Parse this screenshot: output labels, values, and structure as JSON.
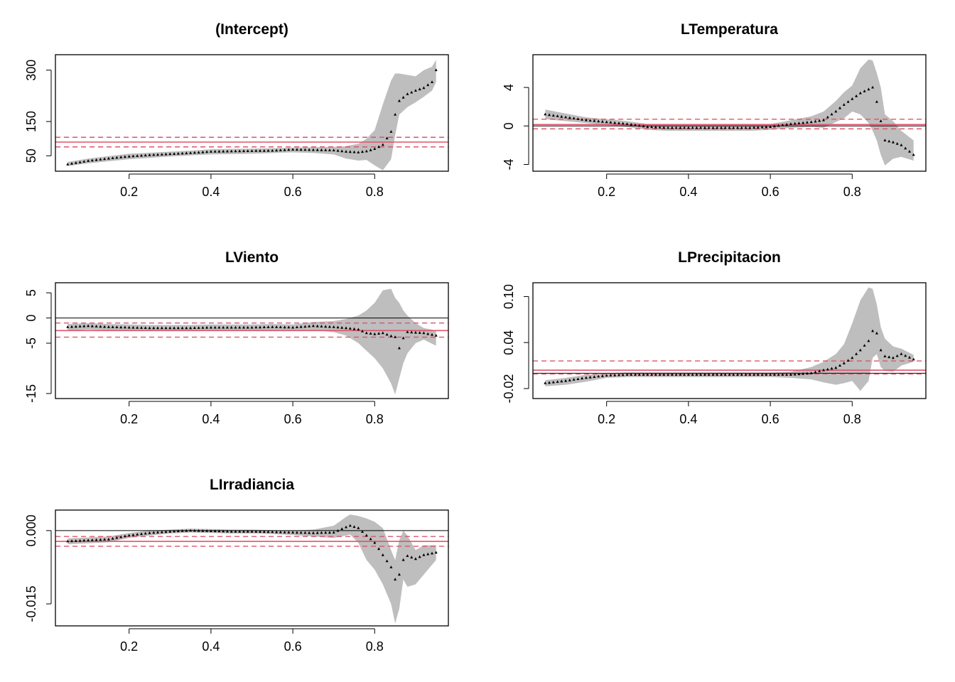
{
  "colors": {
    "band": "#bebebe",
    "points": "#000000",
    "ols": "#df536b",
    "zero": "#000000",
    "frame": "#000000"
  },
  "chart_data": [
    {
      "type": "line",
      "title": "(Intercept)",
      "xlim": [
        0.02,
        0.98
      ],
      "ylim": [
        5,
        345
      ],
      "xticks": [
        "0.2",
        "0.4",
        "0.6",
        "0.8"
      ],
      "xtick_values": [
        0.2,
        0.4,
        0.6,
        0.8
      ],
      "yticks": [
        "50",
        "150",
        "300"
      ],
      "ytick_values": [
        50,
        150,
        300
      ],
      "x": [
        0.05,
        0.1,
        0.15,
        0.2,
        0.25,
        0.3,
        0.35,
        0.4,
        0.45,
        0.5,
        0.55,
        0.6,
        0.65,
        0.7,
        0.73,
        0.76,
        0.78,
        0.8,
        0.82,
        0.84,
        0.85,
        0.86,
        0.88,
        0.9,
        0.92,
        0.94,
        0.95
      ],
      "coef": [
        25,
        35,
        42,
        48,
        52,
        55,
        58,
        62,
        63,
        64,
        65,
        68,
        67,
        66,
        62,
        60,
        63,
        70,
        82,
        120,
        170,
        210,
        230,
        240,
        248,
        265,
        300
      ],
      "lower": [
        20,
        28,
        34,
        40,
        44,
        48,
        51,
        54,
        55,
        56,
        58,
        60,
        58,
        54,
        42,
        36,
        38,
        22,
        8,
        40,
        110,
        170,
        192,
        206,
        222,
        240,
        265
      ],
      "upper": [
        32,
        42,
        49,
        56,
        59,
        62,
        65,
        69,
        70,
        71,
        72,
        74,
        75,
        76,
        78,
        85,
        100,
        125,
        200,
        270,
        290,
        290,
        286,
        282,
        300,
        310,
        330
      ],
      "ols_est": 90,
      "ols_ci": [
        76,
        104
      ],
      "zero_visible": false
    },
    {
      "type": "line",
      "title": "LTemperatura",
      "xlim": [
        0.02,
        0.98
      ],
      "ylim": [
        -4.7,
        7.4
      ],
      "xticks": [
        "0.2",
        "0.4",
        "0.6",
        "0.8"
      ],
      "xtick_values": [
        0.2,
        0.4,
        0.6,
        0.8
      ],
      "yticks": [
        "-4",
        "0",
        "4"
      ],
      "ytick_values": [
        -4,
        0,
        4
      ],
      "x": [
        0.05,
        0.1,
        0.15,
        0.2,
        0.25,
        0.3,
        0.35,
        0.4,
        0.45,
        0.5,
        0.55,
        0.6,
        0.65,
        0.7,
        0.73,
        0.76,
        0.78,
        0.8,
        0.82,
        0.84,
        0.85,
        0.86,
        0.87,
        0.88,
        0.9,
        0.92,
        0.95
      ],
      "coef": [
        1.2,
        0.9,
        0.6,
        0.4,
        0.2,
        -0.1,
        -0.2,
        -0.2,
        -0.2,
        -0.2,
        -0.2,
        -0.1,
        0.2,
        0.4,
        0.6,
        1.5,
        2.2,
        2.8,
        3.4,
        3.8,
        4.0,
        2.5,
        0.5,
        -1.5,
        -1.7,
        -2.0,
        -3.0
      ],
      "lower": [
        0.7,
        0.5,
        0.3,
        0.1,
        -0.1,
        -0.4,
        -0.5,
        -0.5,
        -0.5,
        -0.5,
        -0.5,
        -0.4,
        -0.2,
        -0.1,
        -0.2,
        0.4,
        0.8,
        1.5,
        1.2,
        0.3,
        -0.5,
        -1.5,
        -3.0,
        -4.1,
        -3.4,
        -3.2,
        -3.6
      ],
      "upper": [
        1.7,
        1.3,
        0.9,
        0.7,
        0.5,
        0.2,
        0.1,
        0.1,
        0.1,
        0.1,
        0.1,
        0.2,
        0.6,
        1.0,
        1.5,
        2.6,
        3.5,
        4.2,
        6.0,
        6.9,
        6.8,
        5.5,
        4.0,
        1.2,
        0.5,
        -0.5,
        -1.5
      ],
      "ols_est": 0.15,
      "ols_ci": [
        -0.3,
        0.7
      ],
      "zero_visible": true
    },
    {
      "type": "line",
      "title": "LViento",
      "xlim": [
        0.02,
        0.98
      ],
      "ylim": [
        -16,
        7
      ],
      "xticks": [
        "0.2",
        "0.4",
        "0.6",
        "0.8"
      ],
      "xtick_values": [
        0.2,
        0.4,
        0.6,
        0.8
      ],
      "yticks": [
        "-15",
        "-5",
        "0",
        "5"
      ],
      "ytick_values": [
        -15,
        -5,
        0,
        5
      ],
      "x": [
        0.05,
        0.1,
        0.15,
        0.2,
        0.25,
        0.3,
        0.35,
        0.4,
        0.45,
        0.5,
        0.55,
        0.6,
        0.65,
        0.7,
        0.73,
        0.76,
        0.78,
        0.8,
        0.82,
        0.84,
        0.85,
        0.86,
        0.87,
        0.88,
        0.9,
        0.92,
        0.95
      ],
      "coef": [
        -1.8,
        -1.6,
        -1.8,
        -1.9,
        -2.0,
        -2.0,
        -2.0,
        -1.9,
        -1.9,
        -1.9,
        -1.8,
        -1.9,
        -1.6,
        -1.8,
        -2.0,
        -2.3,
        -3.0,
        -3.2,
        -3.0,
        -3.6,
        -3.8,
        -6.0,
        -4.0,
        -2.8,
        -2.9,
        -3.0,
        -3.5
      ],
      "lower": [
        -2.5,
        -2.3,
        -2.4,
        -2.5,
        -2.6,
        -2.6,
        -2.6,
        -2.5,
        -2.5,
        -2.5,
        -2.4,
        -2.5,
        -2.4,
        -2.8,
        -3.5,
        -5.0,
        -6.5,
        -8.0,
        -10.0,
        -13.0,
        -15.2,
        -12.0,
        -9.0,
        -7.0,
        -5.0,
        -4.3,
        -5.5
      ],
      "upper": [
        -1.2,
        -1.0,
        -1.2,
        -1.3,
        -1.4,
        -1.4,
        -1.4,
        -1.3,
        -1.3,
        -1.3,
        -1.2,
        -1.3,
        -0.8,
        -0.6,
        -0.2,
        0.5,
        1.5,
        3.0,
        5.5,
        5.8,
        4.0,
        3.0,
        1.5,
        0.5,
        -1.0,
        -2.0,
        -2.5
      ],
      "ols_est": -2.5,
      "ols_ci": [
        -3.8,
        -1.0
      ],
      "zero_visible": true
    },
    {
      "type": "line",
      "title": "LPrecipitacion",
      "xlim": [
        0.02,
        0.98
      ],
      "ylim": [
        -0.033,
        0.118
      ],
      "xticks": [
        "0.2",
        "0.4",
        "0.6",
        "0.8"
      ],
      "xtick_values": [
        0.2,
        0.4,
        0.6,
        0.8
      ],
      "yticks": [
        "-0.02",
        "0.04",
        "0.10"
      ],
      "ytick_values": [
        -0.02,
        0.04,
        0.1
      ],
      "x": [
        0.05,
        0.1,
        0.15,
        0.2,
        0.25,
        0.3,
        0.35,
        0.4,
        0.45,
        0.5,
        0.55,
        0.6,
        0.65,
        0.7,
        0.73,
        0.76,
        0.78,
        0.8,
        0.82,
        0.84,
        0.85,
        0.86,
        0.87,
        0.88,
        0.9,
        0.92,
        0.95
      ],
      "coef": [
        -0.013,
        -0.01,
        -0.006,
        -0.003,
        -0.002,
        -0.002,
        -0.002,
        -0.002,
        -0.002,
        -0.002,
        -0.002,
        -0.002,
        -0.002,
        0.0,
        0.004,
        0.007,
        0.013,
        0.02,
        0.03,
        0.042,
        0.055,
        0.052,
        0.03,
        0.022,
        0.02,
        0.025,
        0.018
      ],
      "lower": [
        -0.017,
        -0.015,
        -0.011,
        -0.006,
        -0.005,
        -0.005,
        -0.005,
        -0.005,
        -0.005,
        -0.005,
        -0.005,
        -0.005,
        -0.006,
        -0.008,
        -0.012,
        -0.015,
        -0.013,
        -0.01,
        -0.023,
        -0.01,
        0.02,
        0.025,
        0.008,
        0.003,
        0.002,
        0.01,
        0.015
      ],
      "upper": [
        -0.009,
        -0.006,
        -0.002,
        0.0,
        0.001,
        0.001,
        0.001,
        0.001,
        0.001,
        0.001,
        0.001,
        0.001,
        0.002,
        0.008,
        0.015,
        0.025,
        0.038,
        0.065,
        0.095,
        0.112,
        0.11,
        0.09,
        0.06,
        0.045,
        0.035,
        0.032,
        0.024
      ],
      "ols_est": 0.004,
      "ols_ci": [
        -0.001,
        0.016
      ],
      "zero_visible": true
    },
    {
      "type": "line",
      "title": "LIrradiancia",
      "xlim": [
        0.02,
        0.98
      ],
      "ylim": [
        -0.0195,
        0.0042
      ],
      "xticks": [
        "0.2",
        "0.4",
        "0.6",
        "0.8"
      ],
      "xtick_values": [
        0.2,
        0.4,
        0.6,
        0.8
      ],
      "yticks": [
        "-0.015",
        "0.000"
      ],
      "ytick_values": [
        -0.015,
        0.0
      ],
      "x": [
        0.05,
        0.1,
        0.15,
        0.2,
        0.25,
        0.3,
        0.35,
        0.4,
        0.45,
        0.5,
        0.55,
        0.6,
        0.65,
        0.7,
        0.73,
        0.74,
        0.76,
        0.78,
        0.8,
        0.82,
        0.84,
        0.85,
        0.86,
        0.87,
        0.88,
        0.9,
        0.92,
        0.95
      ],
      "coef": [
        -0.0022,
        -0.002,
        -0.0018,
        -0.001,
        -0.0005,
        -0.0002,
        0.0,
        -0.0001,
        -0.0002,
        -0.0002,
        -0.0003,
        -0.0004,
        -0.0005,
        -0.0004,
        0.0007,
        0.001,
        0.0005,
        -0.001,
        -0.0025,
        -0.005,
        -0.0075,
        -0.01,
        -0.009,
        -0.006,
        -0.0052,
        -0.0058,
        -0.005,
        -0.0045
      ],
      "lower": [
        -0.0028,
        -0.0026,
        -0.0024,
        -0.0015,
        -0.001,
        -0.0006,
        -0.0004,
        -0.0005,
        -0.0006,
        -0.0006,
        -0.0007,
        -0.0009,
        -0.0012,
        -0.0015,
        -0.001,
        -0.0008,
        -0.0025,
        -0.006,
        -0.008,
        -0.011,
        -0.015,
        -0.019,
        -0.016,
        -0.01,
        -0.0115,
        -0.011,
        -0.009,
        -0.006
      ],
      "upper": [
        -0.0016,
        -0.0014,
        -0.0012,
        -0.0005,
        0.0,
        0.0002,
        0.0004,
        0.0003,
        0.0002,
        0.0002,
        0.0001,
        0.0,
        0.0002,
        0.001,
        0.0028,
        0.0033,
        0.003,
        0.0025,
        0.0018,
        0.0005,
        -0.004,
        -0.006,
        -0.002,
        0.0,
        -0.001,
        -0.004,
        -0.003,
        -0.003
      ],
      "ols_est": -0.0022,
      "ols_ci": [
        -0.0032,
        -0.0012
      ],
      "zero_visible": true
    }
  ]
}
